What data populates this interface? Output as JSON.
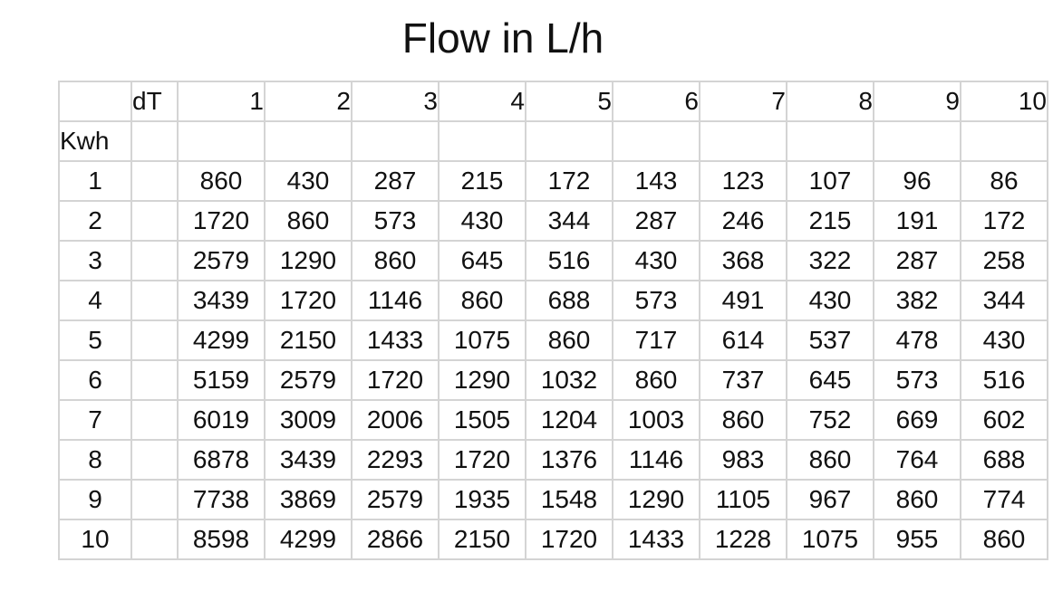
{
  "title": "Flow in L/h",
  "table": {
    "col_header_label": "dT",
    "row_header_label": "Kwh",
    "dt_values": [
      "1",
      "2",
      "3",
      "4",
      "5",
      "6",
      "7",
      "8",
      "9",
      "10"
    ],
    "rows": [
      {
        "kwh": "1",
        "values": [
          "860",
          "430",
          "287",
          "215",
          "172",
          "143",
          "123",
          "107",
          "96",
          "86"
        ]
      },
      {
        "kwh": "2",
        "values": [
          "1720",
          "860",
          "573",
          "430",
          "344",
          "287",
          "246",
          "215",
          "191",
          "172"
        ]
      },
      {
        "kwh": "3",
        "values": [
          "2579",
          "1290",
          "860",
          "645",
          "516",
          "430",
          "368",
          "322",
          "287",
          "258"
        ]
      },
      {
        "kwh": "4",
        "values": [
          "3439",
          "1720",
          "1146",
          "860",
          "688",
          "573",
          "491",
          "430",
          "382",
          "344"
        ]
      },
      {
        "kwh": "5",
        "values": [
          "4299",
          "2150",
          "1433",
          "1075",
          "860",
          "717",
          "614",
          "537",
          "478",
          "430"
        ]
      },
      {
        "kwh": "6",
        "values": [
          "5159",
          "2579",
          "1720",
          "1290",
          "1032",
          "860",
          "737",
          "645",
          "573",
          "516"
        ]
      },
      {
        "kwh": "7",
        "values": [
          "6019",
          "3009",
          "2006",
          "1505",
          "1204",
          "1003",
          "860",
          "752",
          "669",
          "602"
        ]
      },
      {
        "kwh": "8",
        "values": [
          "6878",
          "3439",
          "2293",
          "1720",
          "1376",
          "1146",
          "983",
          "860",
          "764",
          "688"
        ]
      },
      {
        "kwh": "9",
        "values": [
          "7738",
          "3869",
          "2579",
          "1935",
          "1548",
          "1290",
          "1105",
          "967",
          "860",
          "774"
        ]
      },
      {
        "kwh": "10",
        "values": [
          "8598",
          "4299",
          "2866",
          "2150",
          "1720",
          "1433",
          "1228",
          "1075",
          "955",
          "860"
        ]
      }
    ]
  },
  "colors": {
    "grid_line": "#d4d4d4",
    "text": "#111111",
    "background": "#ffffff"
  }
}
